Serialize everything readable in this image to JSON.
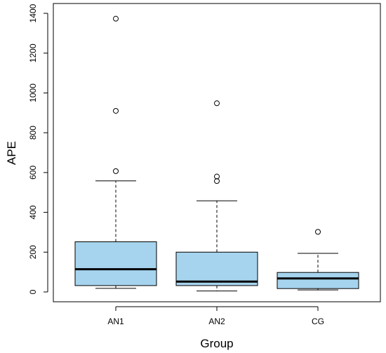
{
  "chart_data": {
    "type": "boxplot",
    "xlabel": "Group",
    "ylabel": "APE",
    "ylim": [
      -50,
      1410
    ],
    "yticks": [
      0,
      200,
      400,
      600,
      800,
      1000,
      1200,
      1400
    ],
    "categories": [
      "AN1",
      "AN2",
      "CG"
    ],
    "box_fill": "#a6d4ee",
    "series": [
      {
        "category": "AN1",
        "whisker_low": 18,
        "q1": 32,
        "median": 114,
        "q3": 252,
        "whisker_high": 558,
        "outliers": [
          607,
          910,
          1373
        ]
      },
      {
        "category": "AN2",
        "whisker_low": 5,
        "q1": 32,
        "median": 52,
        "q3": 200,
        "whisker_high": 458,
        "outliers": [
          557,
          580,
          948
        ]
      },
      {
        "category": "CG",
        "whisker_low": 10,
        "q1": 17,
        "median": 68,
        "q3": 98,
        "whisker_high": 194,
        "outliers": [
          302
        ]
      }
    ]
  }
}
